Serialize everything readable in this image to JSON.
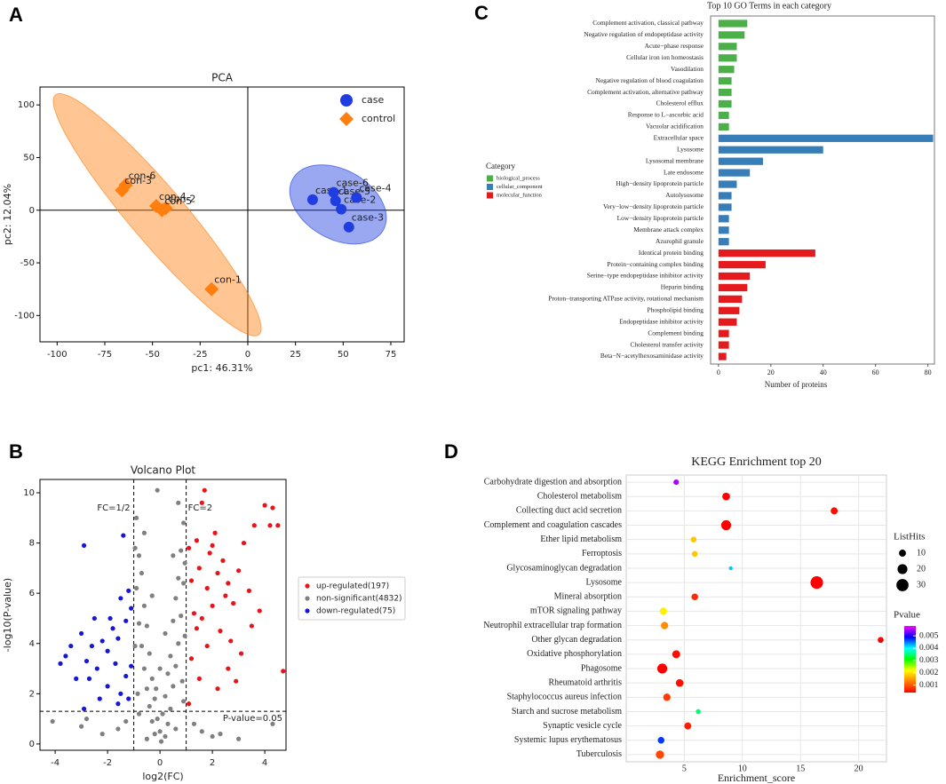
{
  "chart_data": [
    {
      "type": "scatter",
      "panel": "A",
      "title": "PCA",
      "xlabel": "pc1: 46.31%",
      "ylabel": "pc2: 12.04%",
      "xlim": [
        -109,
        82
      ],
      "ylim": [
        -125,
        117
      ],
      "xticks": [
        -100,
        -75,
        -50,
        -25,
        0,
        25,
        50,
        75
      ],
      "yticks": [
        -100,
        -50,
        0,
        50,
        100
      ],
      "zero_lines": true,
      "ellipse": true,
      "legend": "upper right",
      "series": [
        {
          "name": "case",
          "color": "#1f3de0",
          "marker": "circle",
          "labels": [
            "case-1",
            "case-6",
            "case-5",
            "case-2",
            "case-4",
            "case-3"
          ],
          "x": [
            34,
            45,
            46,
            49,
            57,
            53
          ],
          "values": [
            10,
            17,
            9,
            1,
            12,
            -16
          ]
        },
        {
          "name": "control",
          "color": "#ff7f0e",
          "marker": "diamond",
          "labels": [
            "con-6",
            "con-3",
            "con-4",
            "con-2",
            "con-5",
            "con-1"
          ],
          "x": [
            -64,
            -66,
            -48,
            -43,
            -45,
            -19
          ],
          "values": [
            24,
            19,
            4,
            2,
            0,
            -75
          ]
        }
      ]
    },
    {
      "type": "scatter",
      "panel": "B",
      "title": "Volcano Plot",
      "xlabel": "log2(FC)",
      "ylabel": "-log10(P-value)",
      "xlim": [
        -4.58,
        4.81
      ],
      "ylim": [
        -0.25,
        10.53
      ],
      "xticks": [
        -4,
        -2,
        0,
        2,
        4
      ],
      "yticks": [
        0,
        2,
        4,
        6,
        8,
        10
      ],
      "legend": "right",
      "thresholds": {
        "fc": [
          -1,
          1
        ],
        "p": 1.3
      },
      "annotations": [
        "FC=1/2",
        "FC=2",
        "P-value=0.05"
      ],
      "series": [
        {
          "name": "non-significant(4832)",
          "color": "#808080",
          "marker": "circle",
          "x": [
            -0.9,
            -0.8,
            -0.7,
            -0.6,
            -0.5,
            -0.4,
            -0.3,
            -0.2,
            -0.1,
            0,
            0.1,
            0.2,
            0.3,
            0.4,
            0.5,
            0.6,
            0.7,
            0.8,
            0.9,
            -0.9,
            -0.8,
            -0.7,
            -0.6,
            -0.5,
            -0.4,
            -0.3,
            -0.2,
            0.2,
            0.3,
            0.4,
            0.5,
            0.6,
            0.7,
            0.8,
            0.9,
            -0.95,
            0.95,
            -0.1,
            0.7,
            -0.6,
            0.5,
            -0.3,
            0.2,
            0,
            -0.15,
            0.05,
            -0.5,
            0.6,
            -0.8,
            0.9,
            -1.3,
            -1.6,
            -2.2,
            -3.0,
            -2.8,
            -4.1,
            1.3,
            1.6,
            2.0,
            2.3,
            3.0,
            4.3,
            -0.95,
            0.95,
            -0.85,
            0.85
          ],
          "values": [
            9.0,
            7.5,
            6.8,
            5.5,
            4.7,
            3.6,
            2.6,
            1.8,
            1.0,
            0.5,
            1.2,
            1.9,
            2.8,
            3.5,
            4.9,
            5.8,
            6.6,
            7.7,
            8.8,
            6.2,
            4.8,
            3.9,
            3.0,
            2.2,
            1.5,
            0.9,
            0.4,
            0.3,
            0.8,
            1.4,
            2.3,
            3.1,
            4.0,
            5.1,
            6.4,
            7.8,
            7.2,
            10.1,
            9.6,
            8.4,
            7.5,
            5.9,
            4.4,
            3.0,
            2.2,
            0.1,
            0.2,
            0.6,
            1.2,
            1.7,
            0.9,
            0.6,
            0.4,
            0.7,
            1.0,
            0.9,
            0.8,
            0.5,
            0.3,
            0.4,
            0.2,
            0.8,
            3.9,
            4.3,
            2.0,
            2.5
          ]
        },
        {
          "name": "up-regulated(197)",
          "color": "#e8141b",
          "marker": "circle",
          "x": [
            1.1,
            1.2,
            1.3,
            1.4,
            1.5,
            1.6,
            1.7,
            1.8,
            1.9,
            2.0,
            2.1,
            2.2,
            2.3,
            2.4,
            2.5,
            2.6,
            2.7,
            2.8,
            3.0,
            3.2,
            3.4,
            3.6,
            3.8,
            4.0,
            4.2,
            4.3,
            4.5,
            4.7,
            1.2,
            1.5,
            1.8,
            2.2,
            2.6,
            3.1,
            1.1,
            1.4,
            2.0,
            1.6,
            3.5,
            2.9
          ],
          "values": [
            7.8,
            6.5,
            5.2,
            8.1,
            7.0,
            9.6,
            10.1,
            6.2,
            7.6,
            5.5,
            8.4,
            6.8,
            4.5,
            7.3,
            5.9,
            6.4,
            4.1,
            5.6,
            6.9,
            8.0,
            6.1,
            8.7,
            5.3,
            9.5,
            8.7,
            9.4,
            8.7,
            2.9,
            3.4,
            2.6,
            3.9,
            2.2,
            3.0,
            3.6,
            1.6,
            4.6,
            7.9,
            5.0,
            4.7,
            2.5
          ]
        },
        {
          "name": "down-regulated(75)",
          "color": "#1616d8",
          "marker": "circle",
          "x": [
            -2.9,
            -1.4,
            -1.2,
            -1.1,
            -1.3,
            -1.5,
            -1.6,
            -1.8,
            -2.0,
            -2.2,
            -2.4,
            -2.6,
            -2.8,
            -3.0,
            -3.2,
            -3.4,
            -3.6,
            -3.8,
            -1.1,
            -1.3,
            -1.5,
            -1.7,
            -2.0,
            -2.3,
            -2.7,
            -2.9,
            -1.2,
            -1.6,
            -1.9,
            -2.5
          ],
          "values": [
            7.9,
            8.3,
            6.1,
            5.4,
            4.9,
            5.8,
            4.2,
            4.6,
            3.7,
            4.1,
            3.0,
            3.9,
            3.3,
            4.4,
            2.6,
            3.9,
            3.5,
            3.2,
            3.1,
            2.7,
            2.0,
            3.2,
            2.3,
            1.8,
            2.6,
            1.4,
            1.8,
            1.6,
            5.0,
            5.0
          ]
        }
      ]
    },
    {
      "type": "bar",
      "panel": "C",
      "orientation": "horizontal",
      "title": "Top 10 GO Terms in each category",
      "xlabel": "Number of proteins",
      "legend_title": "Category",
      "xlim": [
        -3,
        82.5
      ],
      "xticks": [
        0,
        20,
        40,
        60,
        80
      ],
      "categories": [
        "Complement activation, classical pathway",
        "Negative regulation of endopeptidase activity",
        "Acute−phase response",
        "Cellular iron ion homeostasis",
        "Vasodilation",
        "Negative regulation of blood coagulation",
        "Complement activation, alternative pathway",
        "Cholesterol efflux",
        "Response to L−ascorbic acid",
        "Vacuolar acidification",
        "Extracellular space",
        "Lysosome",
        "Lysosomal membrane",
        "Late endosome",
        "High−density lipoprotein particle",
        "Autolysosome",
        "Very−low−density lipoprotein particle",
        "Low−density lipoprotein particle",
        "Membrane attack complex",
        "Azurophil granule",
        "Identical protein binding",
        "Protein−containing complex binding",
        "Serine−type endopeptidase inhibitor activity",
        "Heparin binding",
        "Proton−transporting ATPase activity, rotational mechanism",
        "Phospholipid binding",
        "Endopeptidase inhibitor activity",
        "Complement binding",
        "Cholesterol transfer activity",
        "Beta−N−acetylhexosaminidase activity"
      ],
      "series": [
        {
          "name": "biological_process",
          "color": "#4daf4a",
          "values": [
            11,
            10,
            7,
            7,
            6,
            5,
            5,
            5,
            4,
            4,
            null,
            null,
            null,
            null,
            null,
            null,
            null,
            null,
            null,
            null,
            null,
            null,
            null,
            null,
            null,
            null,
            null,
            null,
            null,
            null
          ]
        },
        {
          "name": "cellular_component",
          "color": "#377eb8",
          "values": [
            null,
            null,
            null,
            null,
            null,
            null,
            null,
            null,
            null,
            null,
            82,
            40,
            17,
            12,
            7,
            5,
            5,
            4,
            4,
            4,
            null,
            null,
            null,
            null,
            null,
            null,
            null,
            null,
            null,
            null
          ]
        },
        {
          "name": "molecular_function",
          "color": "#e41a1c",
          "values": [
            null,
            null,
            null,
            null,
            null,
            null,
            null,
            null,
            null,
            null,
            null,
            null,
            null,
            null,
            null,
            null,
            null,
            null,
            null,
            null,
            37,
            18,
            12,
            11,
            9,
            8,
            7,
            4,
            4,
            3
          ]
        }
      ]
    },
    {
      "type": "bubble",
      "panel": "D",
      "title": "KEGG Enrichment top 20",
      "xlabel": "Enrichment_score",
      "xlim": [
        0,
        22.4
      ],
      "xticks": [
        5,
        10,
        15,
        20
      ],
      "grid": true,
      "categories": [
        "Carbohydrate digestion and absorption",
        "Cholesterol metabolism",
        "Collecting duct acid secretion",
        "Complement and coagulation cascades",
        "Ether lipid metabolism",
        "Ferroptosis",
        "Glycosaminoglycan degradation",
        "Lysosome",
        "Mineral absorption",
        "mTOR signaling pathway",
        "Neutrophil extracellular trap formation",
        "Other glycan degradation",
        "Oxidative phosphorylation",
        "Phagosome",
        "Rheumatoid arthritis",
        "Staphylococcus aureus infection",
        "Starch and sucrose metabolism",
        "Synaptic vesicle cycle",
        "Systemic lupus erythematosus",
        "Tuberculosis"
      ],
      "values": [
        4.3,
        8.6,
        17.9,
        8.6,
        5.8,
        5.9,
        9.0,
        16.4,
        5.9,
        3.2,
        3.3,
        21.9,
        4.3,
        3.1,
        4.6,
        3.5,
        6.2,
        5.3,
        3.0,
        2.9
      ],
      "sizes": [
        6,
        12,
        10,
        20,
        7,
        7,
        3,
        32,
        9,
        11,
        11,
        7,
        13,
        20,
        12,
        11,
        5,
        10,
        9,
        14
      ],
      "pvalues": [
        0.0055,
        0.0004,
        0.0005,
        0.0004,
        0.0018,
        0.0018,
        0.0042,
        0.0004,
        0.0007,
        0.0021,
        0.0014,
        0.0004,
        0.0005,
        0.0004,
        0.0005,
        0.0008,
        0.0035,
        0.0006,
        0.0047,
        0.0009
      ],
      "size_title": "ListHits",
      "size_legend": [
        10,
        20,
        30
      ],
      "color_title": "Pvalue",
      "clim": [
        0.0004,
        0.0058
      ],
      "cticks": [
        0.001,
        0.002,
        0.003,
        0.004,
        0.005
      ],
      "colors": [
        "#ff0000",
        "#ff8000",
        "#ffff00",
        "#00ff00",
        "#00ffff",
        "#0000ff",
        "#ff00ff"
      ]
    }
  ]
}
